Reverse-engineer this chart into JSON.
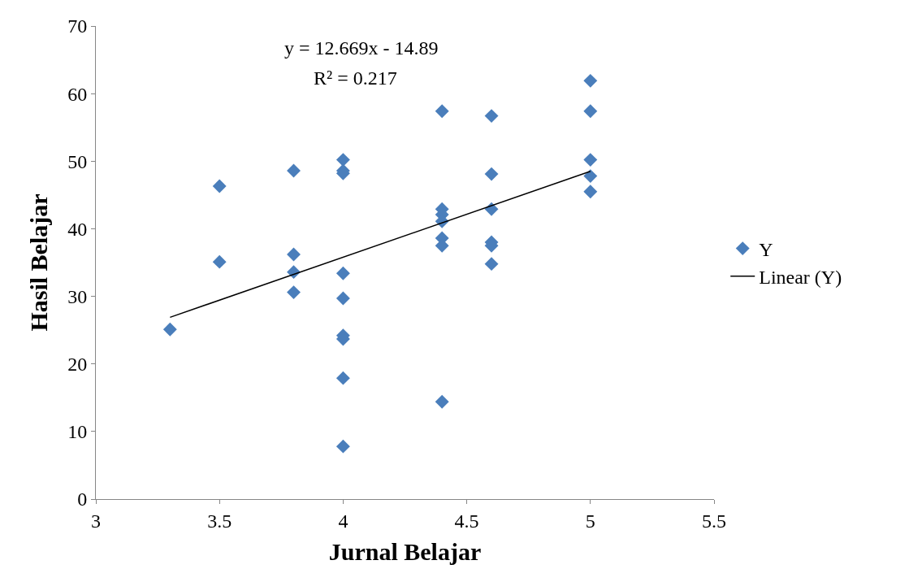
{
  "chart_data": {
    "type": "scatter",
    "xlabel": "Jurnal Belajar",
    "ylabel": "Hasil Belajar",
    "series": [
      {
        "name": "Y",
        "marker": "diamond",
        "color": "#4a7ebb",
        "x": [
          3.3,
          3.5,
          3.5,
          3.8,
          3.8,
          3.8,
          3.8,
          4.0,
          4.0,
          4.0,
          4.0,
          4.0,
          4.0,
          4.0,
          4.0,
          4.0,
          4.4,
          4.4,
          4.4,
          4.4,
          4.4,
          4.4,
          4.4,
          4.6,
          4.6,
          4.6,
          4.6,
          4.6,
          4.6,
          5.0,
          5.0,
          5.0,
          5.0,
          5.0
        ],
        "values": [
          25.1,
          46.3,
          35.1,
          48.6,
          36.2,
          33.6,
          30.6,
          50.2,
          48.6,
          48.2,
          33.4,
          29.7,
          24.2,
          23.7,
          17.9,
          7.8,
          57.4,
          42.9,
          42.1,
          41.1,
          38.6,
          37.5,
          14.4,
          56.7,
          48.1,
          42.9,
          38.0,
          37.5,
          34.8,
          61.9,
          57.4,
          50.2,
          47.8,
          45.5
        ]
      },
      {
        "name": "Linear (Y)",
        "type": "line",
        "marker": "none",
        "line_style": "solid",
        "color": "#000000",
        "x": [
          3.3,
          5.0
        ],
        "values": [
          26.9,
          48.5
        ]
      }
    ],
    "annotations": [
      "y = 12.669x - 14.89",
      "R² = 0.217"
    ],
    "xlim": [
      3,
      5.5
    ],
    "xticks": [
      3,
      3.5,
      4,
      4.5,
      5,
      5.5
    ],
    "ylim": [
      0,
      70
    ],
    "yticks": [
      0,
      10,
      20,
      30,
      40,
      50,
      60,
      70
    ],
    "legend": "right"
  }
}
